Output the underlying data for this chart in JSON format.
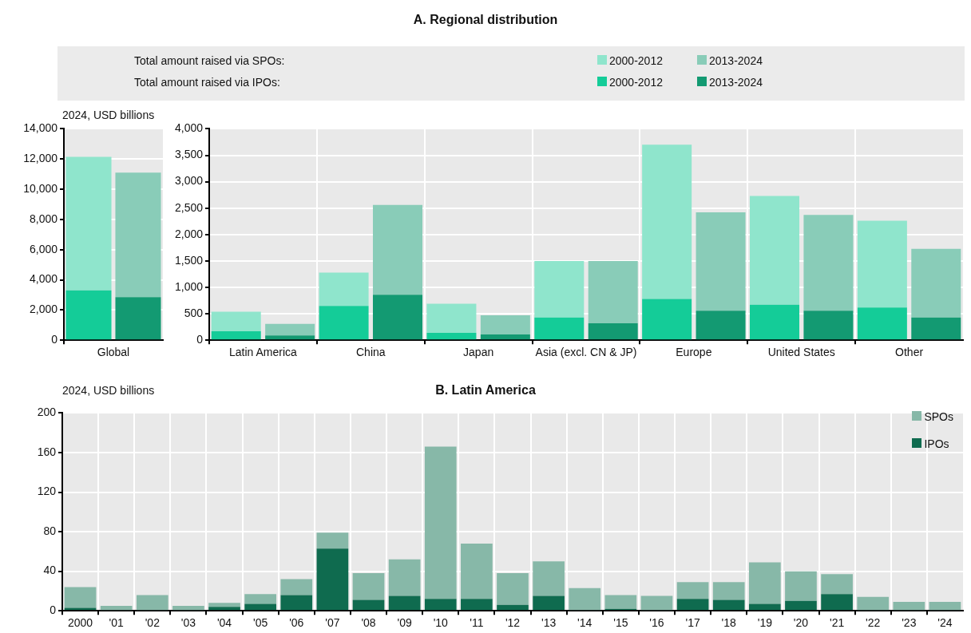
{
  "chart_data": [
    {
      "type": "bar",
      "ylabel": "2024, USD billions",
      "annotations": [
        "Total amount raised via SPOs:",
        "Total amount raised via IPOs:"
      ],
      "categories": [
        "Global",
        null
      ],
      "stacked": true,
      "series": [
        {
          "name": "2000-2012",
          "color": "#14cc98",
          "values": [
            3300,
            null
          ]
        },
        {
          "name": "2013-2024",
          "color": "#139a72",
          "values": [
            null,
            2850
          ]
        },
        {
          "name": "2000-2012",
          "color": "#8fe5cc",
          "values": [
            8850,
            null
          ]
        },
        {
          "name": "2013-2024",
          "color": "#89ccb8",
          "values": [
            null,
            8250
          ]
        }
      ],
      "ylim": [
        0,
        14000
      ],
      "yticks": [
        0,
        {
          "value": 2000,
          "label": "2,000"
        },
        {
          "value": 4000,
          "label": "4,000"
        },
        {
          "value": 6000,
          "label": "6,000"
        },
        {
          "value": 8000,
          "label": "8,000"
        },
        {
          "value": 10000,
          "label": "10,000"
        },
        {
          "value": 12000,
          "label": "12,000"
        },
        {
          "value": 14000,
          "label": "14,000"
        }
      ],
      "grid": "y",
      "legend": "top"
    },
    {
      "type": "bar",
      "title": "A. Regional distribution",
      "categories": [
        "Latin America",
        null,
        "China",
        null,
        "Japan",
        null,
        "Asia (excl. CN & JP)",
        null,
        "Europe",
        null,
        "United States",
        null,
        "Other",
        null
      ],
      "stacked": true,
      "series": [
        {
          "color": "#14cc98",
          "values": [
            170,
            null,
            650,
            null,
            140,
            null,
            430,
            null,
            780,
            null,
            670,
            null,
            620,
            null
          ]
        },
        {
          "color": "#139a72",
          "values": [
            null,
            90,
            null,
            860,
            null,
            110,
            null,
            320,
            null,
            560,
            null,
            560,
            null,
            430
          ]
        },
        {
          "color": "#8fe5cc",
          "values": [
            370,
            null,
            630,
            null,
            550,
            null,
            1070,
            null,
            2920,
            null,
            2060,
            null,
            1640,
            null
          ]
        },
        {
          "color": "#89ccb8",
          "values": [
            null,
            220,
            null,
            1700,
            null,
            360,
            null,
            1180,
            null,
            1860,
            null,
            1810,
            null,
            1300
          ]
        }
      ],
      "ylim": [
        0,
        4000
      ],
      "yticks": [
        0,
        500,
        {
          "value": 1000,
          "label": "1,000"
        },
        {
          "value": 1500,
          "label": "1,500"
        },
        {
          "value": 2000,
          "label": "2,000"
        },
        {
          "value": 2500,
          "label": "2,500"
        },
        {
          "value": 3000,
          "label": "3,000"
        },
        {
          "value": 3500,
          "label": "3,500"
        },
        {
          "value": 4000,
          "label": "4,000"
        }
      ],
      "grid": true
    },
    {
      "type": "bar",
      "title": "B. Latin America",
      "ylabel": "2024, USD billions",
      "categories": [
        "2000",
        "'01",
        "'02",
        "'03",
        "'04",
        "'05",
        "'06",
        "'07",
        "'08",
        "'09",
        "'10",
        "'11",
        "'12",
        "'13",
        "'14",
        "'15",
        "'16",
        "'17",
        "'18",
        "'19",
        "'20",
        "'21",
        "'22",
        "'23",
        "'24"
      ],
      "stacked": true,
      "series": [
        {
          "name": "IPOs",
          "color": "#0f6b4f",
          "values": [
            3,
            0,
            0,
            0,
            4,
            7,
            16,
            63,
            11,
            15,
            12,
            12,
            6,
            15,
            0,
            2,
            0,
            12,
            11,
            7,
            10,
            17,
            0,
            0,
            0
          ]
        },
        {
          "name": "SPOs",
          "color": "#87b8a8",
          "values": [
            21,
            5,
            16,
            5,
            4,
            10,
            16,
            16,
            27,
            37,
            154,
            56,
            32,
            35,
            23,
            14,
            15,
            17,
            18,
            42,
            30,
            20,
            14,
            9,
            9
          ]
        }
      ],
      "ylim": [
        0,
        200
      ],
      "yticks": [
        0,
        40,
        80,
        120,
        160,
        200
      ],
      "grid": true,
      "legend": "top right"
    }
  ]
}
